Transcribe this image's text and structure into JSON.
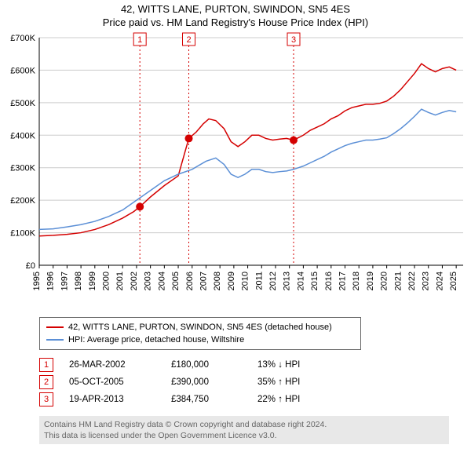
{
  "title_line1": "42, WITTS LANE, PURTON, SWINDON, SN5 4ES",
  "title_line2": "Price paid vs. HM Land Registry's House Price Index (HPI)",
  "chart": {
    "type": "line",
    "background_color": "#ffffff",
    "grid_color": "#cccccc",
    "axis_color": "#000000",
    "x": {
      "min": 1995,
      "max": 2025.5,
      "ticks": [
        1995,
        1996,
        1997,
        1998,
        1999,
        2000,
        2001,
        2002,
        2003,
        2004,
        2005,
        2006,
        2007,
        2008,
        2009,
        2010,
        2011,
        2012,
        2013,
        2014,
        2015,
        2016,
        2017,
        2018,
        2019,
        2020,
        2021,
        2022,
        2023,
        2024,
        2025
      ],
      "tick_labels": [
        "1995",
        "1996",
        "1997",
        "1998",
        "1999",
        "2000",
        "2001",
        "2002",
        "2003",
        "2004",
        "2005",
        "2006",
        "2007",
        "2008",
        "2009",
        "2010",
        "2011",
        "2012",
        "2013",
        "2014",
        "2015",
        "2016",
        "2017",
        "2018",
        "2019",
        "2020",
        "2021",
        "2022",
        "2023",
        "2024",
        "2025"
      ],
      "label_fontsize": 11
    },
    "y": {
      "min": 0,
      "max": 700000,
      "ticks": [
        0,
        100000,
        200000,
        300000,
        400000,
        500000,
        600000,
        700000
      ],
      "tick_labels": [
        "£0",
        "£100K",
        "£200K",
        "£300K",
        "£400K",
        "£500K",
        "£600K",
        "£700K"
      ],
      "label_fontsize": 11
    },
    "series": [
      {
        "name": "property",
        "color": "#d40000",
        "width": 1.5,
        "points": [
          [
            1995.0,
            90000
          ],
          [
            1996.0,
            92000
          ],
          [
            1997.0,
            95000
          ],
          [
            1998.0,
            100000
          ],
          [
            1999.0,
            110000
          ],
          [
            2000.0,
            125000
          ],
          [
            2001.0,
            145000
          ],
          [
            2001.8,
            165000
          ],
          [
            2002.24,
            180000
          ],
          [
            2003.0,
            210000
          ],
          [
            2004.0,
            245000
          ],
          [
            2005.0,
            275000
          ],
          [
            2005.76,
            390000
          ],
          [
            2006.3,
            410000
          ],
          [
            2006.8,
            435000
          ],
          [
            2007.2,
            450000
          ],
          [
            2007.7,
            445000
          ],
          [
            2008.3,
            420000
          ],
          [
            2008.8,
            380000
          ],
          [
            2009.3,
            365000
          ],
          [
            2009.8,
            380000
          ],
          [
            2010.3,
            400000
          ],
          [
            2010.8,
            400000
          ],
          [
            2011.3,
            390000
          ],
          [
            2011.8,
            385000
          ],
          [
            2012.3,
            388000
          ],
          [
            2012.8,
            390000
          ],
          [
            2013.3,
            384750
          ],
          [
            2014.0,
            400000
          ],
          [
            2014.5,
            415000
          ],
          [
            2015.0,
            425000
          ],
          [
            2015.5,
            435000
          ],
          [
            2016.0,
            450000
          ],
          [
            2016.5,
            460000
          ],
          [
            2017.0,
            475000
          ],
          [
            2017.5,
            485000
          ],
          [
            2018.0,
            490000
          ],
          [
            2018.5,
            495000
          ],
          [
            2019.0,
            495000
          ],
          [
            2019.5,
            498000
          ],
          [
            2020.0,
            505000
          ],
          [
            2020.5,
            520000
          ],
          [
            2021.0,
            540000
          ],
          [
            2021.5,
            565000
          ],
          [
            2022.0,
            590000
          ],
          [
            2022.5,
            620000
          ],
          [
            2023.0,
            605000
          ],
          [
            2023.5,
            595000
          ],
          [
            2024.0,
            605000
          ],
          [
            2024.5,
            610000
          ],
          [
            2025.0,
            600000
          ]
        ]
      },
      {
        "name": "hpi",
        "color": "#5b8fd6",
        "width": 1.5,
        "points": [
          [
            1995.0,
            110000
          ],
          [
            1996.0,
            112000
          ],
          [
            1997.0,
            118000
          ],
          [
            1998.0,
            125000
          ],
          [
            1999.0,
            135000
          ],
          [
            2000.0,
            150000
          ],
          [
            2001.0,
            170000
          ],
          [
            2002.0,
            200000
          ],
          [
            2003.0,
            230000
          ],
          [
            2004.0,
            260000
          ],
          [
            2005.0,
            280000
          ],
          [
            2006.0,
            295000
          ],
          [
            2007.0,
            320000
          ],
          [
            2007.7,
            330000
          ],
          [
            2008.3,
            310000
          ],
          [
            2008.8,
            280000
          ],
          [
            2009.3,
            270000
          ],
          [
            2009.8,
            280000
          ],
          [
            2010.3,
            295000
          ],
          [
            2010.8,
            295000
          ],
          [
            2011.3,
            288000
          ],
          [
            2011.8,
            285000
          ],
          [
            2012.3,
            288000
          ],
          [
            2012.8,
            290000
          ],
          [
            2013.3,
            295000
          ],
          [
            2014.0,
            305000
          ],
          [
            2014.5,
            315000
          ],
          [
            2015.0,
            325000
          ],
          [
            2015.5,
            335000
          ],
          [
            2016.0,
            348000
          ],
          [
            2016.5,
            358000
          ],
          [
            2017.0,
            368000
          ],
          [
            2017.5,
            375000
          ],
          [
            2018.0,
            380000
          ],
          [
            2018.5,
            385000
          ],
          [
            2019.0,
            385000
          ],
          [
            2019.5,
            388000
          ],
          [
            2020.0,
            392000
          ],
          [
            2020.5,
            405000
          ],
          [
            2021.0,
            420000
          ],
          [
            2021.5,
            438000
          ],
          [
            2022.0,
            458000
          ],
          [
            2022.5,
            480000
          ],
          [
            2023.0,
            470000
          ],
          [
            2023.5,
            462000
          ],
          [
            2024.0,
            470000
          ],
          [
            2024.5,
            476000
          ],
          [
            2025.0,
            472000
          ]
        ]
      }
    ],
    "sale_markers": [
      {
        "num": "1",
        "x": 2002.24,
        "y": 180000,
        "color": "#d40000"
      },
      {
        "num": "2",
        "x": 2005.76,
        "y": 390000,
        "color": "#d40000"
      },
      {
        "num": "3",
        "x": 2013.3,
        "y": 384750,
        "color": "#d40000"
      }
    ],
    "vline_color": "#d40000",
    "vline_dash": "2,3"
  },
  "legend": {
    "items": [
      {
        "color": "#d40000",
        "label": "42, WITTS LANE, PURTON, SWINDON, SN5 4ES (detached house)"
      },
      {
        "color": "#5b8fd6",
        "label": "HPI: Average price, detached house, Wiltshire"
      }
    ]
  },
  "sales": [
    {
      "num": "1",
      "date": "26-MAR-2002",
      "price": "£180,000",
      "delta": "13% ↓ HPI"
    },
    {
      "num": "2",
      "date": "05-OCT-2005",
      "price": "£390,000",
      "delta": "35% ↑ HPI"
    },
    {
      "num": "3",
      "date": "19-APR-2013",
      "price": "£384,750",
      "delta": "22% ↑ HPI"
    }
  ],
  "footer_line1": "Contains HM Land Registry data © Crown copyright and database right 2024.",
  "footer_line2": "This data is licensed under the Open Government Licence v3.0."
}
